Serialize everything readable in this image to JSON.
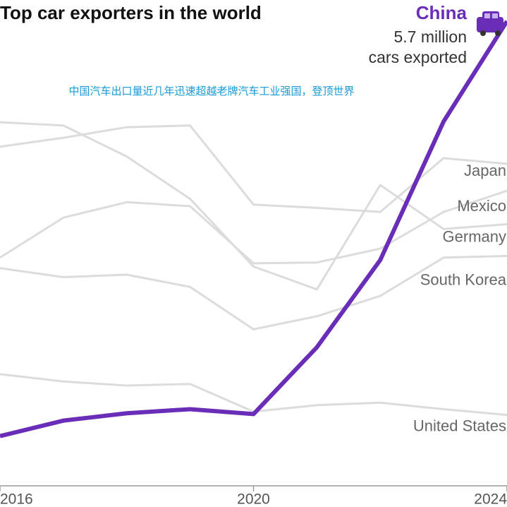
{
  "chart_data": {
    "type": "line",
    "title": "Top car exporters in the world",
    "subtitle": "中国汽车出口量近几年迅速超越老牌汽车工业强国，登顶世界",
    "annotations": [
      "5.7 million",
      "cars exported"
    ],
    "x": [
      2016,
      2017,
      2018,
      2019,
      2020,
      2021,
      2022,
      2023,
      2024
    ],
    "xlim": [
      2016,
      2024
    ],
    "xticks": [
      2016,
      2020,
      2024
    ],
    "ylim": [
      0,
      5.96
    ],
    "series": [
      {
        "name": "Japan",
        "color": "#dcdcdc",
        "values": [
          4.16,
          4.27,
          4.4,
          4.42,
          3.45,
          3.41,
          3.36,
          4.02,
          3.95
        ]
      },
      {
        "name": "Mexico",
        "color": "#dcdcdc",
        "values": [
          2.8,
          3.29,
          3.48,
          3.43,
          2.73,
          2.74,
          2.91,
          3.36,
          3.62
        ]
      },
      {
        "name": "Germany",
        "color": "#dcdcdc",
        "values": [
          4.46,
          4.42,
          4.04,
          3.52,
          2.69,
          2.41,
          3.69,
          3.15,
          3.21
        ]
      },
      {
        "name": "South Korea",
        "color": "#dcdcdc",
        "values": [
          2.67,
          2.56,
          2.59,
          2.44,
          1.92,
          2.08,
          2.33,
          2.8,
          2.82
        ]
      },
      {
        "name": "United States",
        "color": "#dcdcdc",
        "values": [
          1.37,
          1.28,
          1.23,
          1.25,
          0.91,
          0.99,
          1.02,
          0.94,
          0.87
        ]
      },
      {
        "name": "China",
        "color": "#6a2db8",
        "values": [
          0.61,
          0.8,
          0.89,
          0.94,
          0.88,
          1.7,
          2.77,
          4.47,
          5.7
        ]
      }
    ]
  }
}
